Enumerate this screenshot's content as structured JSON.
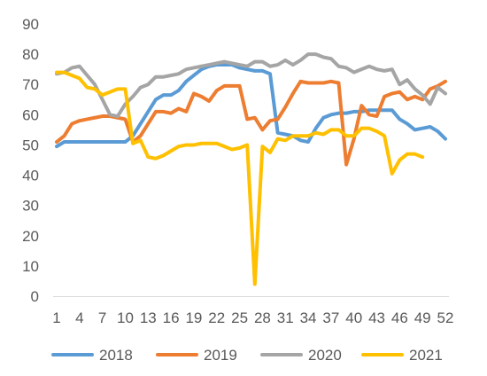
{
  "chart_data": {
    "type": "line",
    "title": "",
    "xlabel": "",
    "ylabel": "",
    "ylim": [
      0,
      90
    ],
    "yticks": [
      0,
      10,
      20,
      30,
      40,
      50,
      60,
      70,
      80,
      90
    ],
    "xlim": [
      1,
      52
    ],
    "xticks": [
      1,
      4,
      7,
      10,
      13,
      16,
      19,
      22,
      25,
      28,
      31,
      34,
      37,
      40,
      43,
      46,
      49,
      52
    ],
    "grid": false,
    "legend_position": "bottom",
    "series": [
      {
        "name": "2018",
        "color": "#5b9bd5",
        "x": [
          1,
          2,
          3,
          4,
          5,
          6,
          7,
          8,
          9,
          10,
          11,
          12,
          13,
          14,
          15,
          16,
          17,
          18,
          19,
          20,
          21,
          22,
          23,
          24,
          25,
          26,
          27,
          28,
          29,
          30,
          31,
          32,
          33,
          34,
          35,
          36,
          37,
          38,
          39,
          40,
          41,
          42,
          43,
          44,
          45,
          46,
          47,
          48,
          49,
          50,
          51,
          52
        ],
        "values": [
          49.5,
          51,
          51,
          51,
          51,
          51,
          51,
          51,
          51,
          51,
          53,
          57,
          61,
          65,
          66.5,
          66.5,
          68,
          71,
          73,
          75,
          76,
          76.5,
          76.5,
          76.5,
          75.5,
          75,
          74.5,
          74.5,
          73.5,
          54,
          53.5,
          53,
          51.5,
          51,
          55.5,
          59,
          60,
          60.5,
          60.5,
          61,
          61,
          61.5,
          61.5,
          61.5,
          61.5,
          58.5,
          57,
          55,
          55.5,
          56,
          54.5,
          52
        ]
      },
      {
        "name": "2019",
        "color": "#ed7d31",
        "x": [
          1,
          2,
          3,
          4,
          5,
          6,
          7,
          8,
          9,
          10,
          11,
          12,
          13,
          14,
          15,
          16,
          17,
          18,
          19,
          20,
          21,
          22,
          23,
          24,
          25,
          26,
          27,
          28,
          29,
          30,
          31,
          32,
          33,
          34,
          35,
          36,
          37,
          38,
          39,
          40,
          41,
          42,
          43,
          44,
          45,
          46,
          47,
          48,
          49,
          50,
          51,
          52
        ],
        "values": [
          51,
          53,
          57,
          58,
          58.5,
          59,
          59.5,
          59.5,
          59,
          58.5,
          51,
          53,
          57,
          61,
          61,
          60.5,
          62,
          61,
          67,
          66,
          64.5,
          68,
          69.5,
          69.5,
          69.5,
          58.5,
          59,
          55,
          58,
          58.5,
          62.5,
          67,
          71,
          70.5,
          70.5,
          70.5,
          71,
          70.5,
          43.5,
          52,
          63,
          60,
          59.5,
          66,
          67,
          67.5,
          65,
          66,
          65,
          68.5,
          69.5,
          71
        ]
      },
      {
        "name": "2020",
        "color": "#a5a5a5",
        "x": [
          1,
          2,
          3,
          4,
          5,
          6,
          7,
          8,
          9,
          10,
          11,
          12,
          13,
          14,
          15,
          16,
          17,
          18,
          19,
          20,
          21,
          22,
          23,
          24,
          25,
          26,
          27,
          28,
          29,
          30,
          31,
          32,
          33,
          34,
          35,
          36,
          37,
          38,
          39,
          40,
          41,
          42,
          43,
          44,
          45,
          46,
          47,
          48,
          49,
          50,
          51,
          52
        ],
        "values": [
          73.5,
          74,
          75.5,
          76,
          73,
          70,
          65,
          60,
          59.5,
          63.5,
          66,
          69,
          70,
          72.5,
          72.5,
          73,
          73.5,
          75,
          75.5,
          76,
          76.5,
          77,
          77.5,
          77,
          76.5,
          76,
          77.5,
          77.5,
          76,
          76.5,
          78,
          76.5,
          78,
          80,
          80,
          79,
          78.5,
          76,
          75.5,
          74,
          75,
          76,
          75,
          74.5,
          75,
          70,
          71.5,
          68.5,
          66.5,
          63.5,
          69,
          67
        ]
      },
      {
        "name": "2021",
        "color": "#ffc000",
        "x": [
          1,
          2,
          3,
          4,
          5,
          6,
          7,
          8,
          9,
          10,
          11,
          12,
          13,
          14,
          15,
          16,
          17,
          18,
          19,
          20,
          21,
          22,
          23,
          24,
          25,
          26,
          27,
          28,
          29,
          30,
          31,
          32,
          33,
          34,
          35,
          36,
          37,
          38,
          39,
          40,
          41,
          42,
          43,
          44,
          45,
          46,
          47,
          48,
          49
        ],
        "values": [
          74,
          74,
          73,
          72,
          69,
          68.5,
          66.5,
          67.5,
          68.5,
          68.5,
          50.5,
          51.5,
          46,
          45.5,
          46.5,
          48,
          49.5,
          50,
          50,
          50.5,
          50.5,
          50.5,
          49.5,
          48.5,
          49,
          50,
          4,
          49.5,
          47.5,
          52,
          51.5,
          53,
          53,
          53,
          54,
          53.5,
          55,
          55,
          53,
          53,
          55.5,
          55.5,
          54.5,
          53,
          40.5,
          45,
          47,
          47,
          46
        ]
      }
    ]
  }
}
